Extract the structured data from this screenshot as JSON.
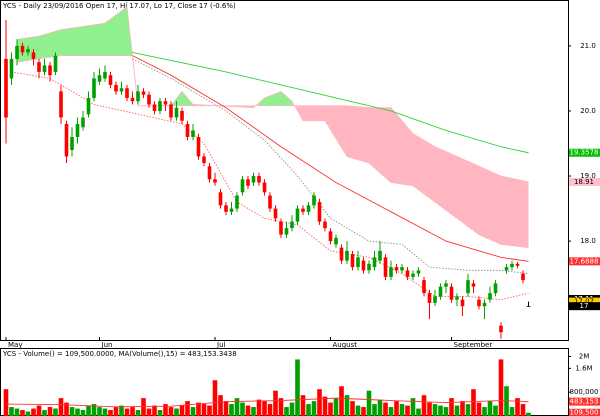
{
  "chart_data": {
    "type": "candlestick",
    "title": "YCS - Daily 23/09/2016 Open 17, Hi 17.07, Lo 17, Close 17 (-0.6%)",
    "categories": [
      "May",
      null,
      null,
      null,
      null,
      null,
      null,
      null,
      null,
      null,
      null,
      null,
      null,
      null,
      null,
      null,
      null,
      "Jun",
      null,
      null,
      null,
      null,
      null,
      null,
      null,
      null,
      null,
      null,
      null,
      null,
      null,
      null,
      null,
      null,
      null,
      null,
      null,
      null,
      "Jul",
      null,
      null,
      null,
      null,
      null,
      null,
      null,
      null,
      null,
      null,
      null,
      null,
      null,
      null,
      null,
      null,
      null,
      null,
      null,
      null,
      "August",
      null,
      null,
      null,
      null,
      null,
      null,
      null,
      null,
      null,
      null,
      null,
      null,
      null,
      null,
      null,
      null,
      null,
      null,
      null,
      null,
      null,
      "September",
      null,
      null,
      null,
      null,
      null,
      null,
      null,
      null,
      null,
      null,
      null,
      null,
      null,
      null
    ],
    "open": [
      20.8,
      20.5,
      20.8,
      21.0,
      20.9,
      20.9,
      20.75,
      20.6,
      20.7,
      20.6,
      20.3,
      19.8,
      19.4,
      19.6,
      19.75,
      19.95,
      20.2,
      20.45,
      20.5,
      20.55,
      20.4,
      20.3,
      20.35,
      20.2,
      20.15,
      20.3,
      20.25,
      20.1,
      20.0,
      20.15,
      20.1,
      19.9,
      20.0,
      19.8,
      19.6,
      19.6,
      19.3,
      19.15,
      18.95,
      18.75,
      18.55,
      18.45,
      18.5,
      18.75,
      18.95,
      18.9,
      19.0,
      18.9,
      18.7,
      18.5,
      18.3,
      18.1,
      18.2,
      18.3,
      18.5,
      18.45,
      18.55,
      18.6,
      18.3,
      18.15,
      17.95,
      17.9,
      17.7,
      17.8,
      17.6,
      17.7,
      17.55,
      17.6,
      17.7,
      17.75,
      17.45,
      17.6,
      17.55,
      17.55,
      17.45,
      17.5,
      17.4,
      17.2,
      17.05,
      17.15,
      17.3,
      17.3,
      17.1,
      17.1,
      17.2,
      17.35,
      17.1,
      17.0,
      17.1,
      17.2,
      16.7,
      17.55,
      17.6,
      17.65,
      17.5,
      17
    ],
    "high": [
      21.4,
      20.9,
      21.1,
      21.05,
      21.0,
      20.95,
      20.8,
      20.8,
      20.75,
      20.9,
      20.4,
      19.85,
      19.75,
      19.9,
      20.0,
      20.3,
      20.6,
      20.65,
      20.7,
      20.6,
      20.45,
      20.45,
      20.4,
      20.3,
      20.4,
      20.35,
      20.3,
      20.15,
      20.2,
      20.2,
      20.15,
      20.15,
      20.05,
      19.85,
      19.8,
      19.65,
      19.35,
      19.2,
      19.05,
      18.8,
      18.6,
      18.6,
      18.75,
      19.0,
      19.0,
      19.05,
      19.05,
      18.95,
      18.75,
      18.55,
      18.35,
      18.3,
      18.4,
      18.55,
      18.55,
      18.6,
      18.75,
      18.65,
      18.35,
      18.2,
      18.1,
      17.95,
      18.0,
      17.85,
      17.85,
      17.75,
      17.7,
      17.85,
      18.0,
      17.8,
      17.7,
      17.65,
      17.65,
      17.6,
      17.55,
      17.6,
      17.45,
      17.25,
      17.25,
      17.35,
      17.4,
      17.35,
      17.2,
      17.15,
      17.5,
      17.4,
      17.15,
      17.1,
      17.3,
      17.4,
      16.75,
      17.65,
      17.7,
      17.68,
      17.55,
      17.07
    ],
    "low": [
      19.5,
      20.4,
      20.7,
      20.85,
      20.85,
      20.7,
      20.5,
      20.55,
      20.45,
      20.55,
      19.8,
      19.2,
      19.3,
      19.5,
      19.7,
      19.9,
      20.15,
      20.4,
      20.45,
      20.35,
      20.25,
      20.25,
      20.15,
      20.1,
      20.1,
      20.2,
      20.05,
      19.95,
      19.95,
      20.0,
      19.85,
      19.85,
      19.8,
      19.55,
      19.55,
      19.25,
      19.15,
      18.9,
      18.85,
      18.5,
      18.4,
      18.4,
      18.45,
      18.7,
      18.8,
      18.85,
      18.85,
      18.7,
      18.45,
      18.3,
      18.05,
      18.05,
      18.15,
      18.25,
      18.4,
      18.4,
      18.5,
      18.25,
      18.15,
      17.95,
      17.9,
      17.65,
      17.65,
      17.55,
      17.55,
      17.5,
      17.5,
      17.55,
      17.65,
      17.4,
      17.4,
      17.5,
      17.5,
      17.4,
      17.4,
      17.45,
      17.15,
      16.8,
      17.0,
      17.1,
      17.2,
      17.05,
      17.0,
      16.85,
      17.15,
      17.2,
      16.95,
      16.8,
      17.05,
      17.15,
      16.5,
      17.5,
      17.55,
      17.58,
      17.35,
      17
    ],
    "close": [
      19.9,
      20.8,
      21.0,
      20.9,
      20.95,
      20.8,
      20.6,
      20.7,
      20.55,
      20.85,
      19.9,
      19.3,
      19.6,
      19.8,
      19.9,
      20.2,
      20.5,
      20.55,
      20.6,
      20.4,
      20.3,
      20.35,
      20.2,
      20.15,
      20.3,
      20.25,
      20.1,
      20.0,
      20.15,
      20.1,
      19.9,
      20.05,
      19.85,
      19.6,
      19.7,
      19.3,
      19.2,
      18.95,
      18.9,
      18.55,
      18.45,
      18.5,
      18.7,
      18.95,
      18.85,
      19.0,
      18.9,
      18.75,
      18.5,
      18.35,
      18.1,
      18.2,
      18.3,
      18.5,
      18.45,
      18.55,
      18.7,
      18.3,
      18.2,
      18.0,
      18.05,
      17.7,
      17.85,
      17.6,
      17.75,
      17.55,
      17.65,
      17.75,
      17.85,
      17.45,
      17.6,
      17.55,
      17.6,
      17.45,
      17.5,
      17.55,
      17.2,
      17.05,
      17.15,
      17.3,
      17.35,
      17.1,
      17.15,
      17.0,
      17.4,
      17.3,
      17.0,
      17.05,
      17.2,
      17.35,
      16.6,
      17.6,
      17.65,
      17.62,
      17.4,
      17
    ],
    "up_color": "#00a000",
    "down_color": "#ff0000",
    "ylim": [
      16.48,
      21.69
    ],
    "yticks": [
      {
        "value": 21,
        "label": "21.0"
      },
      {
        "value": 20,
        "label": "20.0"
      },
      {
        "value": 19,
        "label": "19.0"
      },
      {
        "value": 18,
        "label": "18.0"
      },
      {
        "value": 17,
        "label": "17.0"
      }
    ],
    "cloud": {
      "up_color": "#90f090",
      "down_color": "#ffb6c1",
      "x": [
        2,
        6,
        10,
        14,
        18,
        22,
        23,
        24,
        30,
        32,
        34,
        45,
        47,
        50,
        52,
        54,
        58,
        62,
        66,
        70,
        74,
        78,
        82,
        86,
        90,
        95
      ],
      "span_a": [
        21.1,
        21.15,
        21.25,
        21.3,
        21.35,
        21.6,
        20.85,
        20.08,
        20.08,
        20.3,
        20.1,
        20.05,
        20.2,
        20.3,
        20.15,
        19.85,
        19.85,
        19.3,
        19.2,
        18.9,
        18.85,
        18.6,
        18.35,
        18.1,
        17.95,
        17.9
      ],
      "span_b": [
        20.75,
        20.8,
        20.85,
        20.85,
        20.85,
        20.85,
        20.85,
        20.08,
        20.08,
        20.08,
        20.08,
        20.08,
        20.08,
        20.08,
        20.08,
        20.08,
        20.08,
        20.08,
        20.05,
        20.05,
        19.65,
        19.45,
        19.3,
        19.15,
        19.0,
        18.91
      ]
    },
    "overlays": [
      {
        "color": "#ff3030",
        "x": [
          23,
          30,
          40,
          50,
          60,
          70,
          80,
          90,
          95
        ],
        "values": [
          20.85,
          20.55,
          20.05,
          19.45,
          18.9,
          18.45,
          18.0,
          17.75,
          17.6888
        ]
      },
      {
        "color": "#30d030",
        "x": [
          23,
          40,
          60,
          70,
          80,
          90,
          95
        ],
        "values": [
          20.9,
          20.6,
          20.2,
          20.0,
          19.7,
          19.45,
          19.3578
        ]
      },
      {
        "color": "#909090",
        "dashed": true,
        "x": [
          23,
          30,
          40,
          47,
          53,
          59,
          66,
          72,
          77,
          84,
          90,
          95
        ],
        "values": [
          20.8,
          20.5,
          20.0,
          19.55,
          19.0,
          18.35,
          18.0,
          17.95,
          17.6,
          17.55,
          17.55,
          17.5
        ]
      },
      {
        "color": "#ff6060",
        "dashed": true,
        "x": [
          1,
          8,
          16,
          24,
          32,
          36,
          42,
          47,
          53,
          59,
          66,
          72,
          78,
          84,
          90,
          95
        ],
        "values": [
          20.6,
          20.5,
          20.1,
          19.95,
          19.8,
          19.5,
          18.6,
          18.35,
          18.25,
          17.85,
          17.75,
          17.5,
          17.15,
          17.15,
          17.1,
          17.2
        ]
      }
    ],
    "price_labels": [
      {
        "value": 19.3578,
        "label": "19.3578",
        "color": "#00c000"
      },
      {
        "value": 18.91,
        "label": "18.91",
        "color": "#ffc0cb"
      },
      {
        "value": 17.6888,
        "label": "17.6888",
        "color": "#ff3030"
      },
      {
        "value": 17.11,
        "label": "17.11",
        "color": "#000000"
      },
      {
        "value": 17.07,
        "label": "17.07",
        "color": "#ffcc00"
      },
      {
        "value": 17,
        "label": "17",
        "color": "#000000"
      }
    ],
    "volume": {
      "title": "YCS - Volume() = 109,500.0000, MA(Volume(),15) = 483,153.3438",
      "values": [
        900000,
        300000,
        250000,
        200000,
        150000,
        250000,
        350000,
        200000,
        300000,
        250000,
        600000,
        450000,
        300000,
        250000,
        200000,
        350000,
        400000,
        300000,
        250000,
        200000,
        300000,
        350000,
        250000,
        300000,
        200000,
        600000,
        250000,
        350000,
        200000,
        400000,
        300000,
        250000,
        350000,
        500000,
        300000,
        450000,
        400000,
        350000,
        1200000,
        700000,
        500000,
        400000,
        600000,
        450000,
        350000,
        300000,
        550000,
        500000,
        400000,
        850000,
        600000,
        300000,
        450000,
        1900000,
        700000,
        400000,
        500000,
        900000,
        650000,
        450000,
        600000,
        1000000,
        700000,
        500000,
        350000,
        300000,
        850000,
        400000,
        550000,
        450000,
        300000,
        500000,
        400000,
        350000,
        600000,
        250000,
        700000,
        450000,
        400000,
        350000,
        300000,
        600000,
        350000,
        500000,
        400000,
        900000,
        450000,
        300000,
        500000,
        350000,
        1900000,
        1000000,
        300000,
        600000,
        400000,
        109500
      ],
      "ylim": [
        0,
        2250000
      ],
      "yticks": [
        {
          "value": 2000000,
          "label": "2M"
        },
        {
          "value": 1600000,
          "label": "1.6M"
        },
        {
          "value": 800000,
          "label": "800,000"
        }
      ],
      "ma": {
        "color": "#ff3030",
        "x": [
          0,
          10,
          20,
          30,
          40,
          50,
          60,
          70,
          80,
          90,
          95
        ],
        "values": [
          400000,
          380000,
          310000,
          330000,
          480000,
          520000,
          600000,
          520000,
          450000,
          520000,
          483153.3438
        ]
      },
      "labels": [
        {
          "value": 483153,
          "label": "483,153"
        },
        {
          "value": 109500,
          "label": "109,500"
        }
      ]
    }
  }
}
